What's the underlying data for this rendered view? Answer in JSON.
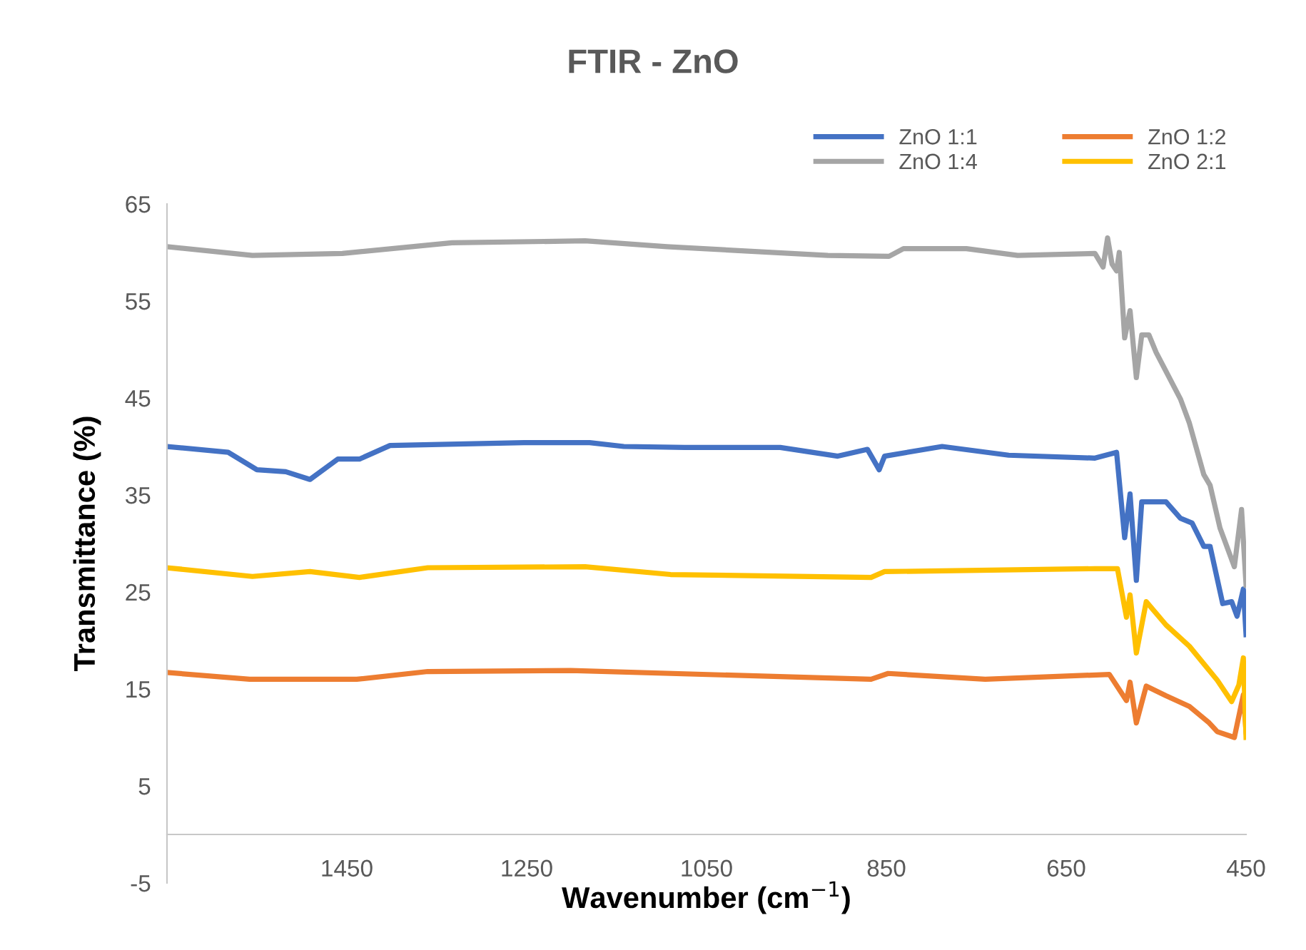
{
  "chart_data": {
    "type": "line",
    "title": "FTIR - ZnO",
    "xlabel": "Wavenumber (cm$^{−1}$)",
    "ylabel": "Transmittance (%)",
    "xlim": [
      1650,
      450
    ],
    "xticks": [
      1450,
      1250,
      1050,
      850,
      650,
      450
    ],
    "ylim": [
      -5,
      65
    ],
    "yticks": [
      -5,
      5,
      15,
      25,
      35,
      45,
      55,
      65
    ],
    "grid": false,
    "legend": "top right",
    "marker": "none",
    "line_style": "solid",
    "series": [
      {
        "name": "ZnO 1:1",
        "color": "#4472c4",
        "x": [
          1650,
          1582,
          1550,
          1518,
          1491,
          1460,
          1436,
          1402,
          1253,
          1180,
          1142,
          1074,
          968,
          904,
          871,
          858,
          852,
          788,
          714,
          618,
          594,
          585,
          579,
          572,
          566,
          539,
          523,
          510,
          497,
          490,
          476,
          466,
          460,
          453,
          450
        ],
        "values": [
          40.0,
          39.4,
          37.6,
          37.4,
          36.6,
          38.7,
          38.7,
          40.1,
          40.4,
          40.4,
          40.0,
          39.9,
          39.9,
          39.0,
          39.7,
          37.6,
          39.0,
          40.0,
          39.1,
          38.8,
          39.4,
          30.6,
          35.1,
          26.2,
          34.3,
          34.3,
          32.6,
          32.1,
          29.7,
          29.7,
          23.8,
          24.0,
          22.5,
          25.3,
          20.6
        ]
      },
      {
        "name": "ZnO 1:2",
        "color": "#ed7d31",
        "x": [
          1650,
          1558,
          1439,
          1360,
          1201,
          867,
          848,
          740,
          602,
          583,
          579,
          572,
          561,
          539,
          513,
          491,
          482,
          463,
          453,
          450
        ],
        "values": [
          16.7,
          16.0,
          16.0,
          16.8,
          16.9,
          16.0,
          16.6,
          16.0,
          16.5,
          13.8,
          15.7,
          11.5,
          15.3,
          14.3,
          13.2,
          11.5,
          10.6,
          10.0,
          14.4,
          10.6
        ]
      },
      {
        "name": "ZnO 1:4",
        "color": "#a5a5a5",
        "x": [
          1650,
          1555,
          1455,
          1333,
          1185,
          1094,
          915,
          847,
          831,
          761,
          704,
          618,
          609,
          604,
          599,
          594,
          591,
          585,
          579,
          572,
          566,
          558,
          550,
          523,
          513,
          497,
          490,
          479,
          463,
          455,
          450
        ],
        "values": [
          60.6,
          59.7,
          59.9,
          61.0,
          61.2,
          60.6,
          59.7,
          59.6,
          60.4,
          60.4,
          59.7,
          59.9,
          58.5,
          61.5,
          58.8,
          58.1,
          60.0,
          51.2,
          54.0,
          47.1,
          51.5,
          51.5,
          49.7,
          44.9,
          42.4,
          37.1,
          36.0,
          31.6,
          27.6,
          33.5,
          25.7
        ]
      },
      {
        "name": "ZnO 2:1",
        "color": "#ffc000",
        "x": [
          1650,
          1555,
          1491,
          1436,
          1360,
          1185,
          1090,
          867,
          852,
          618,
          593,
          583,
          579,
          572,
          561,
          539,
          513,
          482,
          466,
          458,
          453,
          450
        ],
        "values": [
          27.5,
          26.6,
          27.1,
          26.5,
          27.5,
          27.6,
          26.8,
          26.5,
          27.1,
          27.4,
          27.4,
          22.4,
          24.7,
          18.7,
          24.0,
          21.6,
          19.4,
          15.9,
          13.7,
          15.4,
          18.2,
          10.0
        ]
      }
    ]
  }
}
